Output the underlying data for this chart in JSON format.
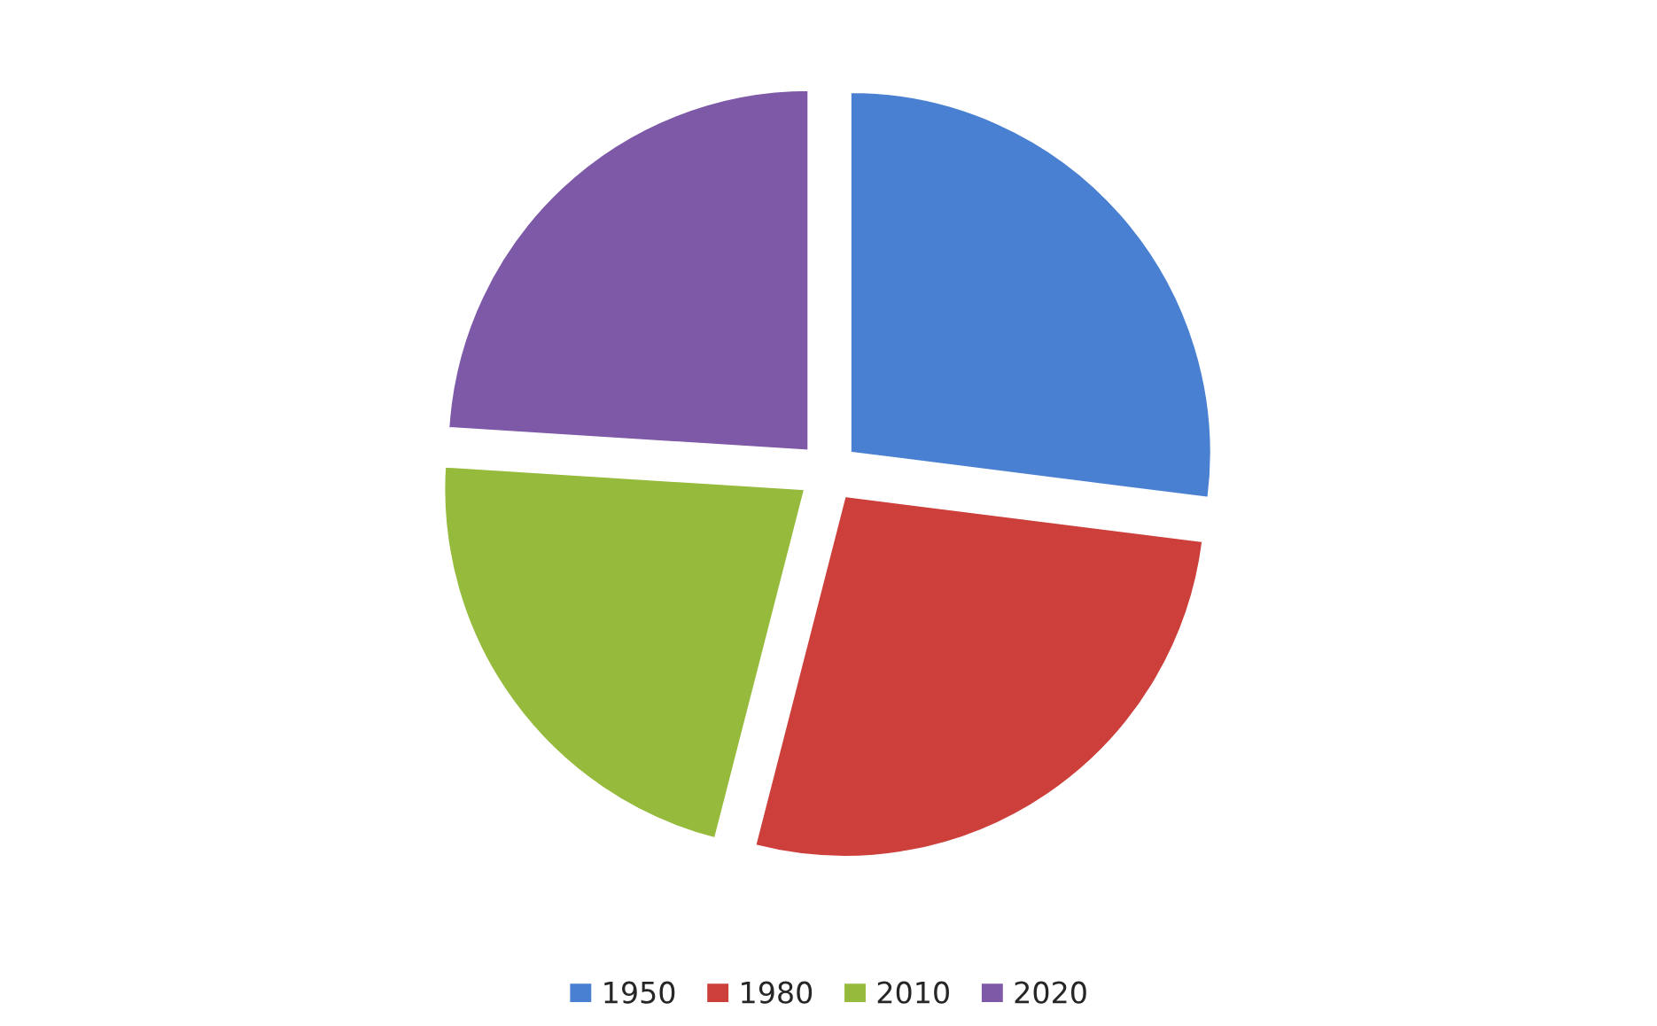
{
  "chart_data": {
    "type": "pie",
    "categories": [
      "1950",
      "1980",
      "2010",
      "2020"
    ],
    "values": [
      27,
      27,
      22,
      24
    ],
    "colors": [
      "#4a80d2",
      "#cc3f3b",
      "#96bb3c",
      "#7d59a8"
    ],
    "legend": "bottom"
  }
}
